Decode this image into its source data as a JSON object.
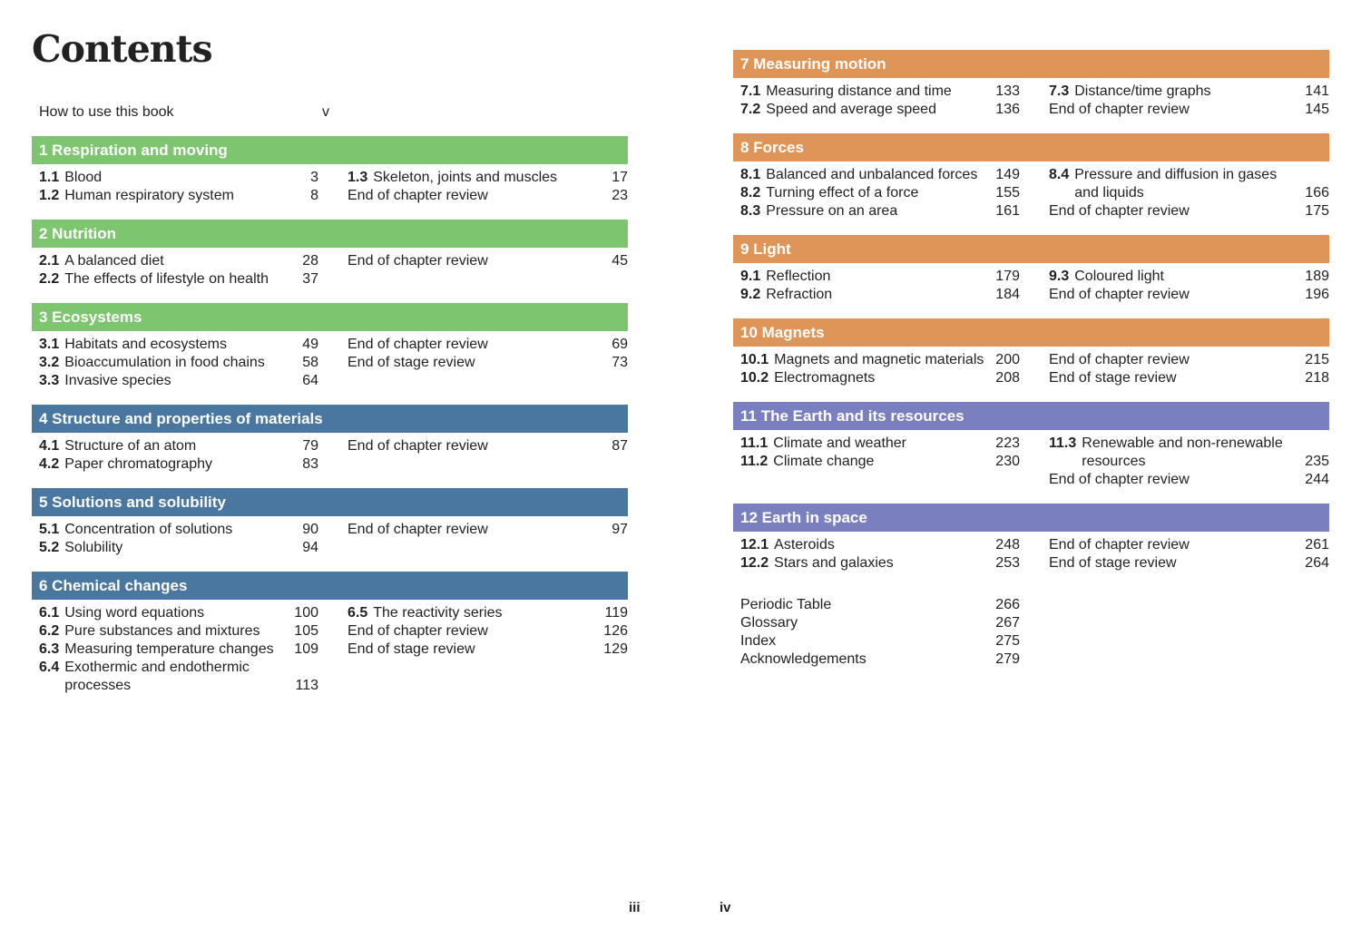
{
  "left_page": {
    "title": "Contents",
    "front": [
      {
        "label": "How to use this book",
        "page": "v"
      }
    ],
    "chapters": [
      {
        "heading": "1 Respiration and moving",
        "color": "#7dc56e",
        "left": [
          {
            "num": "1.1",
            "label": "Blood",
            "page": 3
          },
          {
            "num": "1.2",
            "label": "Human respiratory system",
            "page": 8
          }
        ],
        "right": [
          {
            "num": "1.3",
            "label": "Skeleton, joints and muscles",
            "page": 17
          },
          {
            "label": "End of chapter review",
            "page": 23
          }
        ]
      },
      {
        "heading": "2 Nutrition",
        "color": "#7dc56e",
        "left": [
          {
            "num": "2.1",
            "label": "A balanced diet",
            "page": 28
          },
          {
            "num": "2.2",
            "label": "The effects of lifestyle on health",
            "page": 37
          }
        ],
        "right": [
          {
            "label": "End of chapter review",
            "page": 45
          }
        ]
      },
      {
        "heading": "3 Ecosystems",
        "color": "#7dc56e",
        "left": [
          {
            "num": "3.1",
            "label": "Habitats and ecosystems",
            "page": 49
          },
          {
            "num": "3.2",
            "label": "Bioaccumulation in food chains",
            "page": 58
          },
          {
            "num": "3.3",
            "label": "Invasive species",
            "page": 64
          }
        ],
        "right": [
          {
            "label": "End of chapter review",
            "page": 69
          },
          {
            "label": "End of stage review",
            "page": 73
          }
        ]
      },
      {
        "heading": "4 Structure and properties of materials",
        "color": "#4a77a0",
        "left": [
          {
            "num": "4.1",
            "label": "Structure of an atom",
            "page": 79
          },
          {
            "num": "4.2",
            "label": "Paper chromatography",
            "page": 83
          }
        ],
        "right": [
          {
            "label": "End of chapter review",
            "page": 87
          }
        ]
      },
      {
        "heading": "5 Solutions and solubility",
        "color": "#4a77a0",
        "left": [
          {
            "num": "5.1",
            "label": "Concentration of solutions",
            "page": 90
          },
          {
            "num": "5.2",
            "label": "Solubility",
            "page": 94
          }
        ],
        "right": [
          {
            "label": "End of chapter review",
            "page": 97
          }
        ]
      },
      {
        "heading": "6 Chemical changes",
        "color": "#4a77a0",
        "left": [
          {
            "num": "6.1",
            "label": "Using word equations",
            "page": 100
          },
          {
            "num": "6.2",
            "label": "Pure substances and mixtures",
            "page": 105
          },
          {
            "num": "6.3",
            "label": "Measuring temperature changes",
            "page": 109
          },
          {
            "num": "6.4",
            "label": [
              "Exothermic and endothermic",
              "processes"
            ],
            "page": 113
          }
        ],
        "right": [
          {
            "num": "6.5",
            "label": "The reactivity series",
            "page": 119
          },
          {
            "label": "End of chapter review",
            "page": 126
          },
          {
            "label": "End of stage review",
            "page": 129
          }
        ]
      }
    ],
    "folio": "iii"
  },
  "right_page": {
    "chapters": [
      {
        "heading": "7 Measuring motion",
        "color": "#e09558",
        "left": [
          {
            "num": "7.1",
            "label": "Measuring distance and time",
            "page": 133
          },
          {
            "num": "7.2",
            "label": "Speed and average speed",
            "page": 136
          }
        ],
        "right": [
          {
            "num": "7.3",
            "label": "Distance/time graphs",
            "page": 141
          },
          {
            "label": "End of chapter review",
            "page": 145
          }
        ]
      },
      {
        "heading": "8 Forces",
        "color": "#e09558",
        "left": [
          {
            "num": "8.1",
            "label": "Balanced and unbalanced forces",
            "page": 149
          },
          {
            "num": "8.2",
            "label": "Turning effect of a force",
            "page": 155
          },
          {
            "num": "8.3",
            "label": "Pressure on an area",
            "page": 161
          }
        ],
        "right": [
          {
            "num": "8.4",
            "label": [
              "Pressure and diffusion in gases",
              "and liquids"
            ],
            "page": 166
          },
          {
            "label": "End of chapter review",
            "page": 175
          }
        ]
      },
      {
        "heading": "9 Light",
        "color": "#e09558",
        "left": [
          {
            "num": "9.1",
            "label": "Reflection",
            "page": 179
          },
          {
            "num": "9.2",
            "label": "Refraction",
            "page": 184
          }
        ],
        "right": [
          {
            "num": "9.3",
            "label": "Coloured light",
            "page": 189
          },
          {
            "label": "End of chapter review",
            "page": 196
          }
        ]
      },
      {
        "heading": "10 Magnets",
        "color": "#e09558",
        "left": [
          {
            "num": "10.1",
            "label": "Magnets and magnetic materials",
            "page": 200
          },
          {
            "num": "10.2",
            "label": "Electromagnets",
            "page": 208
          }
        ],
        "right": [
          {
            "label": "End of chapter review",
            "page": 215
          },
          {
            "label": "End of stage review",
            "page": 218
          }
        ]
      },
      {
        "heading": "11 The Earth and its resources",
        "color": "#7a80bf",
        "left": [
          {
            "num": "11.1",
            "label": "Climate and weather",
            "page": 223
          },
          {
            "num": "11.2",
            "label": "Climate change",
            "page": 230
          }
        ],
        "right": [
          {
            "num": "11.3",
            "label": [
              "Renewable and non-renewable",
              "resources"
            ],
            "page": 235
          },
          {
            "label": "End of chapter review",
            "page": 244
          }
        ]
      },
      {
        "heading": "12 Earth in space",
        "color": "#7a80bf",
        "left": [
          {
            "num": "12.1",
            "label": "Asteroids",
            "page": 248
          },
          {
            "num": "12.2",
            "label": "Stars and galaxies",
            "page": 253
          }
        ],
        "right": [
          {
            "label": "End of chapter review",
            "page": 261
          },
          {
            "label": "End of stage review",
            "page": 264
          }
        ]
      }
    ],
    "back": [
      {
        "label": "Periodic Table",
        "page": 266
      },
      {
        "label": "Glossary",
        "page": 267
      },
      {
        "label": "Index",
        "page": 275
      },
      {
        "label": "Acknowledgements",
        "page": 279
      }
    ],
    "folio": "iv"
  }
}
